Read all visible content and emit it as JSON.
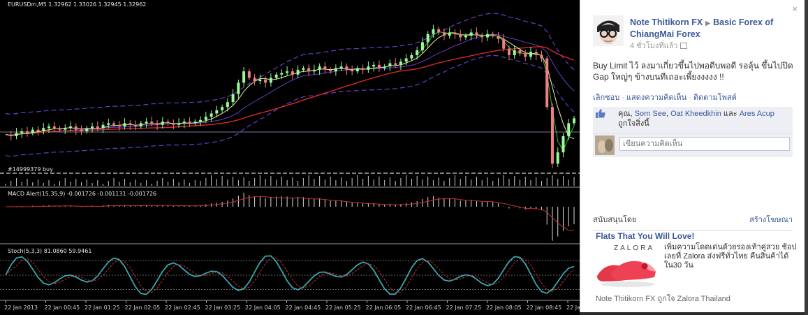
{
  "colors": {
    "chart_bg": "#000000",
    "bull_candle": "#98fb98",
    "bear_candle": "#f08080",
    "bollinger": "#6a3cc8",
    "ma_red": "#d42a2a",
    "ma_yellow": "#f0f0a0",
    "ma_green": "#30c030",
    "stoch_main": "#3aa6b0",
    "stoch_signal": "#c83030",
    "fb_link": "#3b5998"
  },
  "chart": {
    "header": "EURUSDm,M5  1.32962 1.33026 1.32945 1.32962",
    "order_label": "#14999379 buy",
    "macd_label": "MACD Alert(15,35,9) -0.001726 -0.001131 -0.001726",
    "stoch_label": "Stoch(5,3,3) 81.0860 59.9461",
    "time_labels": [
      "22 Jan 2013",
      "22 Jan 00:45",
      "22 Jan 01:25",
      "22 Jan 02:05",
      "22 Jan 02:45",
      "22 Jan 03:25",
      "22 Jan 04:05",
      "22 Jan 04:45",
      "22 Jan 05:25",
      "22 Jan 06:05",
      "22 Jan 06:45",
      "22 Jan 07:25",
      "22 Jan 08:05",
      "22 Jan 08:45",
      "22 Jan"
    ]
  },
  "chart_data": {
    "type": "candlestick",
    "symbol": "EURUSDm",
    "timeframe": "M5",
    "last_quote": {
      "open": 1.32962,
      "high": 1.33026,
      "low": 1.32945,
      "close": 1.32962
    },
    "x_labels": [
      "22 Jan 2013",
      "22 Jan 00:45",
      "22 Jan 01:25",
      "22 Jan 02:05",
      "22 Jan 02:45",
      "22 Jan 03:25",
      "22 Jan 04:05",
      "22 Jan 04:45",
      "22 Jan 05:25",
      "22 Jan 06:05",
      "22 Jan 06:45",
      "22 Jan 07:25",
      "22 Jan 08:05",
      "22 Jan 08:45",
      "22 Jan"
    ],
    "close_trace": [
      0.23,
      0.22,
      0.24,
      0.25,
      0.24,
      0.26,
      0.25,
      0.27,
      0.28,
      0.27,
      0.26,
      0.27,
      0.28,
      0.26,
      0.25,
      0.27,
      0.28,
      0.27,
      0.29,
      0.3,
      0.29,
      0.28,
      0.3,
      0.29,
      0.28,
      0.3,
      0.31,
      0.3,
      0.29,
      0.31,
      0.3,
      0.29,
      0.3,
      0.31,
      0.3,
      0.31,
      0.32,
      0.34,
      0.36,
      0.38,
      0.4,
      0.43,
      0.48,
      0.55,
      0.62,
      0.58,
      0.56,
      0.57,
      0.55,
      0.58,
      0.6,
      0.61,
      0.62,
      0.6,
      0.63,
      0.64,
      0.62,
      0.63,
      0.65,
      0.63,
      0.62,
      0.64,
      0.65,
      0.63,
      0.62,
      0.64,
      0.63,
      0.65,
      0.66,
      0.64,
      0.65,
      0.67,
      0.66,
      0.68,
      0.7,
      0.72,
      0.75,
      0.8,
      0.85,
      0.88,
      0.86,
      0.84,
      0.86,
      0.85,
      0.83,
      0.84,
      0.86,
      0.84,
      0.83,
      0.85,
      0.84,
      0.82,
      0.76,
      0.72,
      0.75,
      0.73,
      0.71,
      0.74,
      0.72,
      0.7,
      0.4,
      0.05,
      0.12,
      0.22,
      0.3,
      0.33
    ],
    "indicators": {
      "order": "#14999379 buy",
      "macd": {
        "params": "15,35,9",
        "values": [
          -0.001726,
          -0.001131,
          -0.001726
        ]
      },
      "stochastic": {
        "params": "5,3,3",
        "main": 81.086,
        "signal": 59.9461,
        "levels": [
          20,
          80
        ]
      }
    }
  },
  "fb": {
    "close_label": "×",
    "author": "Note Thitikorn FX",
    "arrow": "▶",
    "group": "Basic Forex of ChiangMai Forex",
    "time": "4 ชั่วโมงที่แล้ว",
    "post_text": "Buy Limit ไว้ ลงมาเกี่ยวขึ้นไปพอดีบพอดี รอลุ้น ขึ้นไปปิด Gap ใหญ่ๆ ข้างบนทีเถอะเพี้ยงงงงง !!",
    "actions": [
      "เลิกชอบ",
      "แสดงความคิดเห็น",
      "ติดตามโพสต์"
    ],
    "likes": {
      "prefix": "คุณ,",
      "names": [
        "Som See",
        "Oat Kheedkhin"
      ],
      "joiner": "และ",
      "last": "Ares Acup",
      "suffix": "ถูกใจสิ่งนี้"
    },
    "comment_placeholder": "เขียนความคิดเห็น",
    "sponsored_label": "สนับสนุนโดย",
    "create_ad": "สร้างโฆษณา",
    "ad": {
      "title": "Flats That You Will Love!",
      "brand": "ZALORA",
      "text": "เพิ่มความโดดเด่นด้วยรองเท้าคู่สวย ช้อปเลยที่ Zalora ส่งฟรีทั่วไทย คืนสินค้าได้ใน30 วัน",
      "social": "Note Thitikorn FX ถูกใจ Zalora Thailand"
    }
  }
}
